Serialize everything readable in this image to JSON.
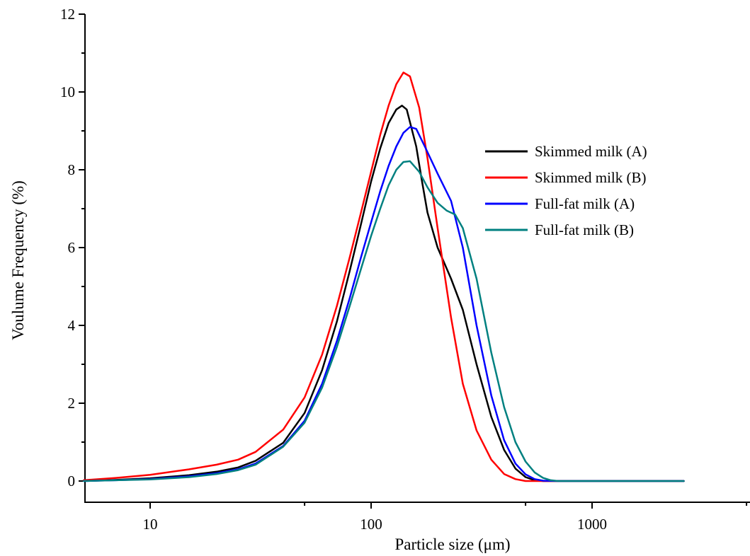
{
  "chart_data": {
    "type": "line",
    "xlabel": "Particle size (μm)",
    "ylabel": "Voulume Frequency (%)",
    "x_scale": "log",
    "xlim": [
      5,
      6000
    ],
    "ylim": [
      0,
      12
    ],
    "x_ticks": [
      10,
      100,
      1000
    ],
    "x_tick_labels": [
      "10",
      "100",
      "1000"
    ],
    "y_ticks": [
      0,
      2,
      4,
      6,
      8,
      10,
      12
    ],
    "y_tick_labels": [
      "0",
      "2",
      "4",
      "6",
      "8",
      "10",
      "12"
    ],
    "grid": false,
    "legend_position": "right",
    "series": [
      {
        "name": "Skimmed milk (A)",
        "color": "#000000",
        "points": [
          [
            5,
            0
          ],
          [
            7,
            0.03
          ],
          [
            10,
            0.07
          ],
          [
            15,
            0.15
          ],
          [
            20,
            0.24
          ],
          [
            25,
            0.35
          ],
          [
            30,
            0.52
          ],
          [
            40,
            0.98
          ],
          [
            50,
            1.75
          ],
          [
            60,
            2.85
          ],
          [
            70,
            4.1
          ],
          [
            80,
            5.4
          ],
          [
            90,
            6.6
          ],
          [
            100,
            7.7
          ],
          [
            110,
            8.55
          ],
          [
            120,
            9.2
          ],
          [
            130,
            9.55
          ],
          [
            138,
            9.65
          ],
          [
            145,
            9.55
          ],
          [
            160,
            8.6
          ],
          [
            170,
            7.7
          ],
          [
            180,
            6.9
          ],
          [
            200,
            6.0
          ],
          [
            230,
            5.2
          ],
          [
            260,
            4.4
          ],
          [
            300,
            3.0
          ],
          [
            350,
            1.65
          ],
          [
            400,
            0.8
          ],
          [
            450,
            0.32
          ],
          [
            500,
            0.1
          ],
          [
            550,
            0.02
          ],
          [
            600,
            0
          ],
          [
            1000,
            0
          ],
          [
            2600,
            0
          ]
        ]
      },
      {
        "name": "Skimmed milk (B)",
        "color": "#ff0000",
        "points": [
          [
            5,
            0.02
          ],
          [
            7,
            0.08
          ],
          [
            10,
            0.16
          ],
          [
            15,
            0.3
          ],
          [
            20,
            0.42
          ],
          [
            25,
            0.55
          ],
          [
            30,
            0.75
          ],
          [
            40,
            1.32
          ],
          [
            50,
            2.15
          ],
          [
            60,
            3.25
          ],
          [
            70,
            4.5
          ],
          [
            80,
            5.75
          ],
          [
            90,
            6.9
          ],
          [
            100,
            7.95
          ],
          [
            110,
            8.9
          ],
          [
            120,
            9.65
          ],
          [
            130,
            10.2
          ],
          [
            140,
            10.5
          ],
          [
            150,
            10.4
          ],
          [
            165,
            9.6
          ],
          [
            180,
            8.3
          ],
          [
            200,
            6.5
          ],
          [
            230,
            4.2
          ],
          [
            260,
            2.5
          ],
          [
            300,
            1.3
          ],
          [
            350,
            0.55
          ],
          [
            400,
            0.18
          ],
          [
            450,
            0.05
          ],
          [
            500,
            0
          ],
          [
            1000,
            0
          ],
          [
            2600,
            0
          ]
        ]
      },
      {
        "name": "Full-fat milk (A)",
        "color": "#0000ff",
        "points": [
          [
            5,
            0
          ],
          [
            7,
            0.02
          ],
          [
            10,
            0.05
          ],
          [
            15,
            0.12
          ],
          [
            20,
            0.2
          ],
          [
            25,
            0.3
          ],
          [
            30,
            0.45
          ],
          [
            40,
            0.9
          ],
          [
            50,
            1.55
          ],
          [
            60,
            2.5
          ],
          [
            70,
            3.6
          ],
          [
            80,
            4.7
          ],
          [
            90,
            5.75
          ],
          [
            100,
            6.65
          ],
          [
            110,
            7.45
          ],
          [
            120,
            8.1
          ],
          [
            130,
            8.6
          ],
          [
            140,
            8.95
          ],
          [
            150,
            9.1
          ],
          [
            160,
            9.05
          ],
          [
            175,
            8.6
          ],
          [
            200,
            7.9
          ],
          [
            230,
            7.2
          ],
          [
            260,
            6.0
          ],
          [
            300,
            4.0
          ],
          [
            350,
            2.2
          ],
          [
            400,
            1.05
          ],
          [
            450,
            0.45
          ],
          [
            500,
            0.17
          ],
          [
            550,
            0.05
          ],
          [
            600,
            0.01
          ],
          [
            700,
            0
          ],
          [
            1000,
            0
          ],
          [
            2600,
            0
          ]
        ]
      },
      {
        "name": "Full-fat milk (B)",
        "color": "#008080",
        "points": [
          [
            5,
            0
          ],
          [
            7,
            0.02
          ],
          [
            10,
            0.04
          ],
          [
            15,
            0.1
          ],
          [
            20,
            0.18
          ],
          [
            25,
            0.28
          ],
          [
            30,
            0.42
          ],
          [
            40,
            0.88
          ],
          [
            50,
            1.5
          ],
          [
            60,
            2.4
          ],
          [
            70,
            3.45
          ],
          [
            80,
            4.5
          ],
          [
            90,
            5.45
          ],
          [
            100,
            6.3
          ],
          [
            110,
            7.0
          ],
          [
            120,
            7.6
          ],
          [
            130,
            8.0
          ],
          [
            140,
            8.2
          ],
          [
            150,
            8.22
          ],
          [
            165,
            7.95
          ],
          [
            180,
            7.55
          ],
          [
            200,
            7.15
          ],
          [
            220,
            6.95
          ],
          [
            240,
            6.85
          ],
          [
            260,
            6.5
          ],
          [
            300,
            5.2
          ],
          [
            350,
            3.3
          ],
          [
            400,
            1.9
          ],
          [
            450,
            1.0
          ],
          [
            500,
            0.5
          ],
          [
            550,
            0.22
          ],
          [
            600,
            0.08
          ],
          [
            650,
            0.02
          ],
          [
            700,
            0
          ],
          [
            1000,
            0
          ],
          [
            2600,
            0
          ]
        ]
      }
    ]
  }
}
